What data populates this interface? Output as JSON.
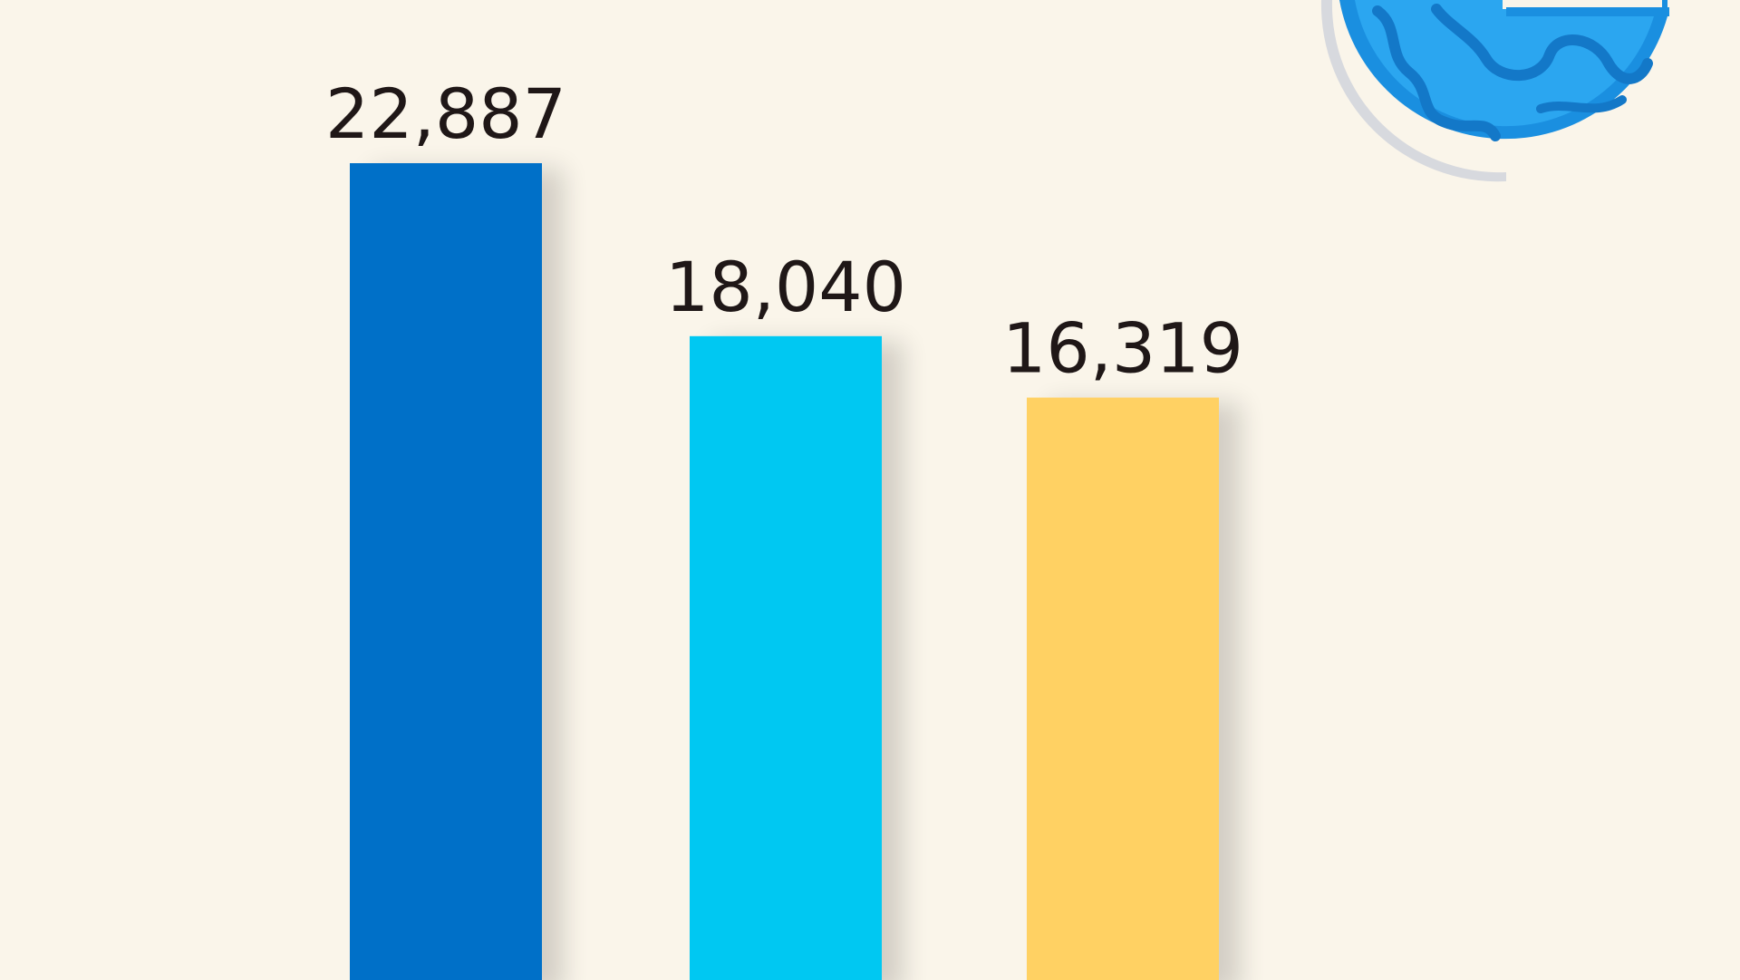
{
  "chart_data": {
    "type": "bar",
    "values": [
      22887,
      18040,
      16319
    ],
    "value_labels": [
      "22,887",
      "18,040",
      "16,319"
    ],
    "colors": [
      "#0070C8",
      "#02C8F2",
      "#FFD163"
    ],
    "grid": false,
    "legend": "none"
  },
  "background_color": "#FAF5EA",
  "icons": [
    "globe-icon"
  ]
}
